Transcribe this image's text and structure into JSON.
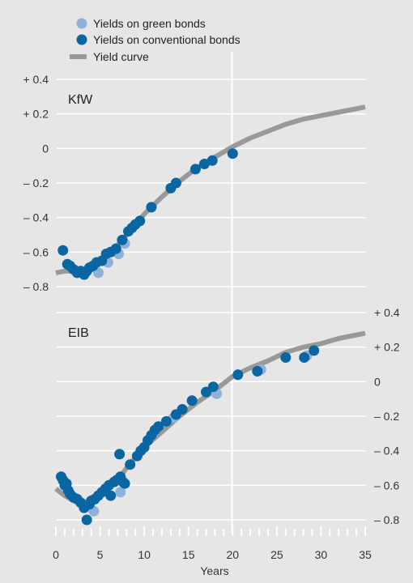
{
  "colors": {
    "background": "#e6e6e6",
    "green_bonds": "#8fb0d8",
    "conventional_bonds": "#0a66a3",
    "yield_curve": "#999999",
    "gridline": "#ffffff",
    "axis_text": "#333333"
  },
  "legend": [
    {
      "label": "Yields on green bonds",
      "marker": "circle",
      "color_key": "green_bonds"
    },
    {
      "label": "Yields on conventional bonds",
      "marker": "circle",
      "color_key": "conventional_bonds"
    },
    {
      "label": "Yield curve",
      "marker": "line",
      "color_key": "yield_curve"
    }
  ],
  "chart_data": [
    {
      "type": "scatter",
      "title": "KfW",
      "ylabel": "",
      "ytick_side": "left",
      "ylim": [
        -0.8,
        0.4
      ],
      "yticks": [
        0.4,
        0.2,
        0,
        -0.2,
        -0.4,
        -0.6,
        -0.8
      ],
      "ytick_labels": [
        "+ 0.4",
        "+ 0.2",
        "0",
        "– 0.2",
        "– 0.4",
        "– 0.6",
        "– 0.8"
      ],
      "xlim": [
        0,
        35
      ],
      "series": [
        {
          "name": "Yields on green bonds",
          "marker": "circle",
          "x": [
            4.8,
            5.9,
            7.1,
            7.8
          ],
          "y": [
            -0.72,
            -0.66,
            -0.61,
            -0.55
          ]
        },
        {
          "name": "Yields on conventional bonds",
          "marker": "circle",
          "x": [
            0.8,
            1.3,
            1.6,
            2.0,
            2.4,
            2.8,
            3.2,
            3.5,
            3.8,
            4.2,
            4.6,
            5.2,
            5.7,
            6.2,
            6.8,
            7.5,
            8.2,
            8.6,
            9.0,
            9.5,
            10.8,
            13.0,
            13.6,
            15.8,
            16.8,
            17.7,
            20.0
          ],
          "y": [
            -0.59,
            -0.67,
            -0.68,
            -0.7,
            -0.72,
            -0.71,
            -0.73,
            -0.71,
            -0.69,
            -0.68,
            -0.66,
            -0.65,
            -0.61,
            -0.6,
            -0.58,
            -0.53,
            -0.48,
            -0.46,
            -0.44,
            -0.42,
            -0.34,
            -0.23,
            -0.2,
            -0.12,
            -0.09,
            -0.07,
            -0.03
          ]
        },
        {
          "name": "Yield curve",
          "type": "line",
          "x": [
            0,
            1,
            2,
            3,
            4,
            5,
            6,
            7,
            8,
            9,
            10,
            12,
            14,
            16,
            18,
            20,
            22,
            24,
            26,
            28,
            30,
            32,
            34,
            35
          ],
          "y": [
            -0.72,
            -0.71,
            -0.71,
            -0.71,
            -0.69,
            -0.65,
            -0.6,
            -0.56,
            -0.5,
            -0.44,
            -0.38,
            -0.28,
            -0.19,
            -0.11,
            -0.05,
            0.01,
            0.06,
            0.1,
            0.14,
            0.17,
            0.19,
            0.21,
            0.23,
            0.24
          ]
        }
      ]
    },
    {
      "type": "scatter",
      "title": "EIB",
      "ylabel": "",
      "ytick_side": "right",
      "ylim": [
        -0.8,
        0.4
      ],
      "yticks": [
        0.4,
        0.2,
        0,
        -0.2,
        -0.4,
        -0.6,
        -0.8
      ],
      "ytick_labels": [
        "+ 0.4",
        "+ 0.2",
        "0",
        "– 0.2",
        "– 0.4",
        "– 0.6",
        "– 0.8"
      ],
      "xlabel": "Years",
      "xlim": [
        0,
        35
      ],
      "xticks": [
        0,
        5,
        10,
        15,
        20,
        25,
        30,
        35
      ],
      "series": [
        {
          "name": "Yields on green bonds",
          "marker": "circle",
          "x": [
            4.3,
            7.3,
            13.3,
            18.2,
            23.2,
            28.4
          ],
          "y": [
            -0.75,
            -0.64,
            -0.21,
            -0.07,
            0.07,
            0.15
          ]
        },
        {
          "name": "Yields on conventional bonds",
          "marker": "circle",
          "x": [
            0.6,
            0.8,
            1.0,
            1.2,
            1.4,
            1.6,
            2.0,
            2.4,
            2.8,
            3.2,
            3.5,
            3.8,
            4.0,
            4.4,
            4.8,
            5.2,
            5.6,
            6.0,
            6.2,
            6.6,
            6.9,
            7.2,
            7.3,
            7.6,
            7.8,
            8.4,
            9.2,
            9.6,
            10.0,
            10.4,
            10.8,
            11.2,
            11.6,
            12.5,
            13.6,
            14.3,
            15.4,
            17.0,
            17.8,
            20.6,
            22.8,
            26.0,
            28.1,
            29.2
          ],
          "y": [
            -0.55,
            -0.57,
            -0.6,
            -0.59,
            -0.63,
            -0.65,
            -0.67,
            -0.68,
            -0.7,
            -0.73,
            -0.8,
            -0.71,
            -0.69,
            -0.68,
            -0.66,
            -0.64,
            -0.62,
            -0.6,
            -0.66,
            -0.58,
            -0.57,
            -0.42,
            -0.55,
            -0.58,
            -0.59,
            -0.48,
            -0.43,
            -0.4,
            -0.38,
            -0.34,
            -0.31,
            -0.28,
            -0.26,
            -0.23,
            -0.19,
            -0.16,
            -0.11,
            -0.06,
            -0.03,
            0.04,
            0.06,
            0.14,
            0.14,
            0.18
          ]
        },
        {
          "name": "Yield curve",
          "type": "line",
          "x": [
            0,
            1,
            2,
            3,
            4,
            5,
            6,
            7,
            8,
            9,
            10,
            12,
            14,
            16,
            18,
            20,
            22,
            24,
            26,
            28,
            30,
            32,
            34,
            35
          ],
          "y": [
            -0.62,
            -0.66,
            -0.69,
            -0.7,
            -0.69,
            -0.66,
            -0.62,
            -0.57,
            -0.5,
            -0.44,
            -0.38,
            -0.29,
            -0.2,
            -0.12,
            -0.05,
            0.03,
            0.08,
            0.12,
            0.17,
            0.2,
            0.22,
            0.25,
            0.27,
            0.28
          ]
        }
      ]
    }
  ]
}
